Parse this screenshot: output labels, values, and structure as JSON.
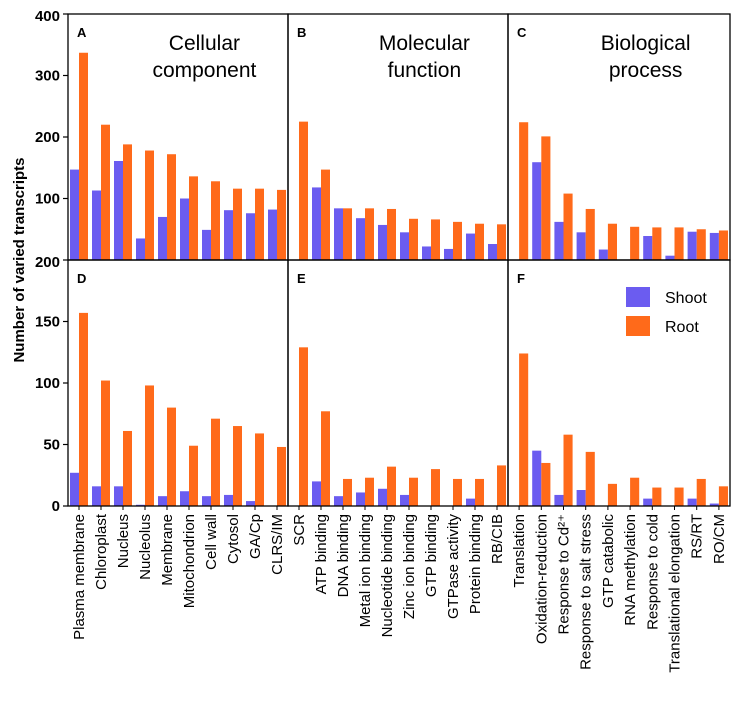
{
  "figure": {
    "ylabel": "Number of varied transcripts",
    "legend": [
      {
        "name": "Shoot",
        "color": "#6b5cf0"
      },
      {
        "name": "Root",
        "color": "#ff6a1a"
      }
    ]
  },
  "chart_data": [
    {
      "type": "bar",
      "panel": "A",
      "title_lines": [
        "Cellular",
        "component"
      ],
      "ylim": [
        0,
        400
      ],
      "yticks": [
        "0",
        "100",
        "200",
        "300",
        "400"
      ],
      "categories": [
        "Plasma membrane",
        "Chloroplast",
        "Nucleus",
        "Nucleolus",
        "Membrane",
        "Mitochondrion",
        "Cell wall",
        "Cytosol",
        "GA/Cp",
        "CLRS/IM"
      ],
      "series": [
        {
          "name": "Shoot",
          "values": [
            147,
            113,
            161,
            35,
            70,
            100,
            49,
            81,
            76,
            82
          ]
        },
        {
          "name": "Root",
          "values": [
            337,
            220,
            188,
            178,
            172,
            136,
            128,
            116,
            116,
            114
          ]
        }
      ]
    },
    {
      "type": "bar",
      "panel": "B",
      "title_lines": [
        "Molecular",
        "function"
      ],
      "ylim": [
        0,
        400
      ],
      "categories": [
        "SCR",
        "ATP binding",
        "DNA binding",
        "Metal ion binding",
        "Nucleotide binding",
        "Zinc ion binding",
        "GTP binding",
        "GTPase activity",
        "Protein binding",
        "RB/CIB"
      ],
      "series": [
        {
          "name": "Shoot",
          "values": [
            0,
            118,
            84,
            68,
            57,
            45,
            22,
            18,
            43,
            26
          ]
        },
        {
          "name": "Root",
          "values": [
            225,
            147,
            84,
            84,
            83,
            67,
            66,
            62,
            59,
            58
          ]
        }
      ]
    },
    {
      "type": "bar",
      "panel": "C",
      "title_lines": [
        "Biological",
        "process"
      ],
      "ylim": [
        0,
        400
      ],
      "categories": [
        "Translation",
        "Oxidation-reduction",
        "Response to Cd²⁺",
        "Response to salt stress",
        "GTP catabolic",
        "RNA methylation",
        "Response to cold",
        "Translational elongation",
        "RS/RT",
        "RO/CM"
      ],
      "series": [
        {
          "name": "Shoot",
          "values": [
            0,
            159,
            62,
            45,
            17,
            0,
            39,
            7,
            46,
            44
          ]
        },
        {
          "name": "Root",
          "values": [
            224,
            201,
            108,
            83,
            59,
            54,
            53,
            53,
            50,
            48
          ]
        }
      ]
    },
    {
      "type": "bar",
      "panel": "D",
      "ylim": [
        0,
        200
      ],
      "yticks": [
        "0",
        "50",
        "100",
        "150",
        "200"
      ],
      "categories": [
        "Plasma membrane",
        "Chloroplast",
        "Nucleus",
        "Nucleolus",
        "Membrane",
        "Mitochondrion",
        "Cell wall",
        "Cytosol",
        "GA/Cp",
        "CLRS/IM"
      ],
      "series": [
        {
          "name": "Shoot",
          "values": [
            27,
            16,
            16,
            1,
            8,
            12,
            8,
            9,
            4,
            0
          ]
        },
        {
          "name": "Root",
          "values": [
            157,
            102,
            61,
            98,
            80,
            49,
            71,
            65,
            59,
            48
          ]
        }
      ]
    },
    {
      "type": "bar",
      "panel": "E",
      "ylim": [
        0,
        200
      ],
      "categories": [
        "SCR",
        "ATP binding",
        "DNA binding",
        "Metal ion binding",
        "Nucleotide binding",
        "Zinc ion binding",
        "GTP binding",
        "GTPase activity",
        "Protein binding",
        "RB/CIB"
      ],
      "series": [
        {
          "name": "Shoot",
          "values": [
            0,
            20,
            8,
            11,
            14,
            9,
            0,
            0,
            6,
            0
          ]
        },
        {
          "name": "Root",
          "values": [
            129,
            77,
            22,
            23,
            32,
            23,
            30,
            22,
            22,
            33
          ]
        }
      ]
    },
    {
      "type": "bar",
      "panel": "F",
      "ylim": [
        0,
        200
      ],
      "categories": [
        "Translation",
        "Oxidation-reduction",
        "Response to Cd²⁺",
        "Response to salt stress",
        "GTP catabolic",
        "RNA methylation",
        "Response to cold",
        "Translational elongation",
        "RS/RT",
        "RO/CM"
      ],
      "series": [
        {
          "name": "Shoot",
          "values": [
            0,
            45,
            9,
            13,
            0,
            0,
            6,
            0,
            6,
            2
          ]
        },
        {
          "name": "Root",
          "values": [
            124,
            35,
            58,
            44,
            18,
            23,
            15,
            15,
            22,
            16
          ]
        }
      ]
    }
  ]
}
